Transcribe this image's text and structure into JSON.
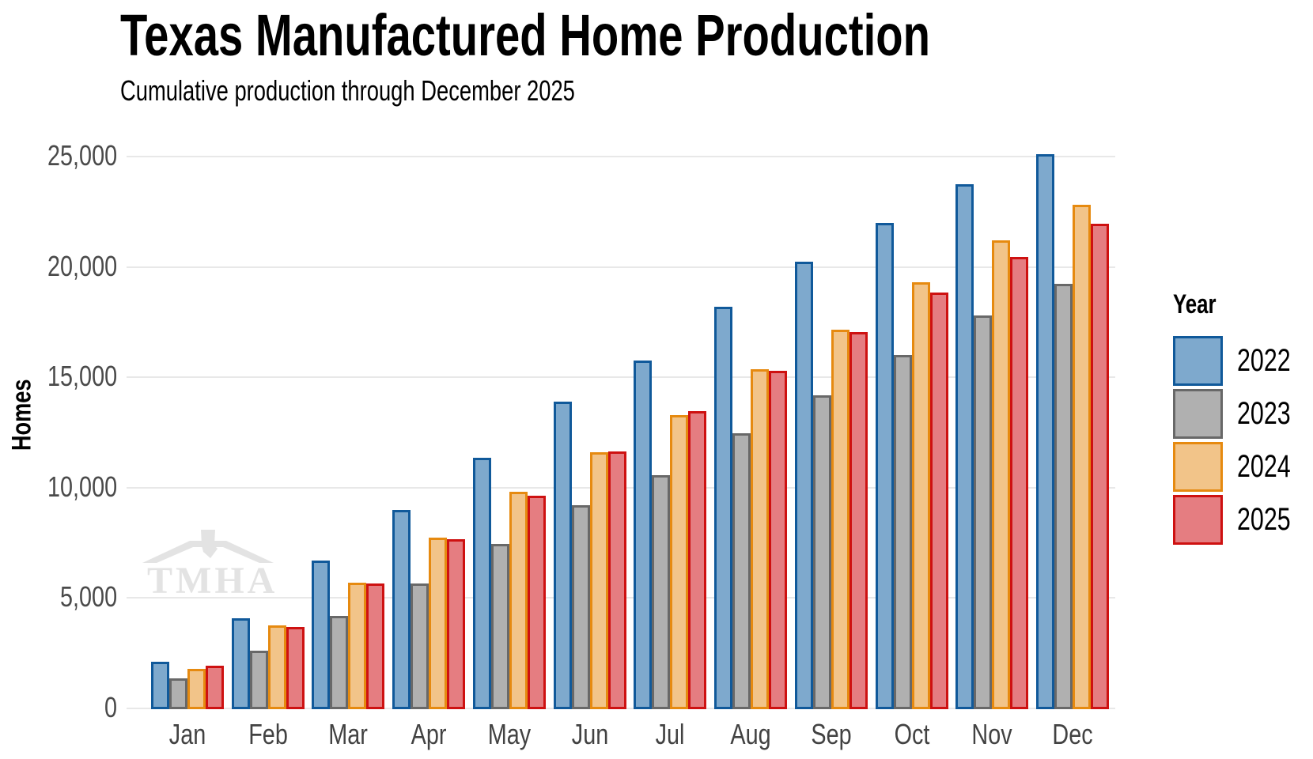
{
  "chart_data": {
    "type": "bar",
    "title": "Texas Manufactured Home Production",
    "subtitle": "Cumulative production through December 2025",
    "ylabel": "Homes",
    "xlabel": "",
    "categories": [
      "Jan",
      "Feb",
      "Mar",
      "Apr",
      "May",
      "Jun",
      "Jul",
      "Aug",
      "Sep",
      "Oct",
      "Nov",
      "Dec"
    ],
    "series": [
      {
        "name": "2022",
        "fill": "#7ea9cd",
        "stroke": "#10599a",
        "values": [
          2100,
          4100,
          6700,
          9000,
          11350,
          13900,
          15750,
          18200,
          20250,
          22000,
          23750,
          25100
        ]
      },
      {
        "name": "2023",
        "fill": "#b0b0b0",
        "stroke": "#686868",
        "values": [
          1350,
          2600,
          4200,
          5650,
          7450,
          9200,
          10550,
          12450,
          14200,
          16000,
          17800,
          19250
        ]
      },
      {
        "name": "2024",
        "fill": "#f2c489",
        "stroke": "#e68a10",
        "values": [
          1800,
          3750,
          5700,
          7750,
          9800,
          11600,
          13300,
          15350,
          17150,
          19300,
          21200,
          22800
        ]
      },
      {
        "name": "2025",
        "fill": "#e57d81",
        "stroke": "#ce1111",
        "values": [
          1950,
          3700,
          5650,
          7650,
          9650,
          11650,
          13450,
          15300,
          17050,
          18850,
          20450,
          21950
        ]
      }
    ],
    "legend": {
      "title": "Year",
      "position": "right"
    },
    "y_ticks": [
      0,
      5000,
      10000,
      15000,
      20000,
      25000
    ],
    "ylim": [
      0,
      25000
    ],
    "grid": true,
    "watermark": "TMHA",
    "colors": {
      "gridline": "#e8e8e8",
      "tick_text": "#4a4a4a",
      "watermark": "#e3e3e3"
    }
  }
}
